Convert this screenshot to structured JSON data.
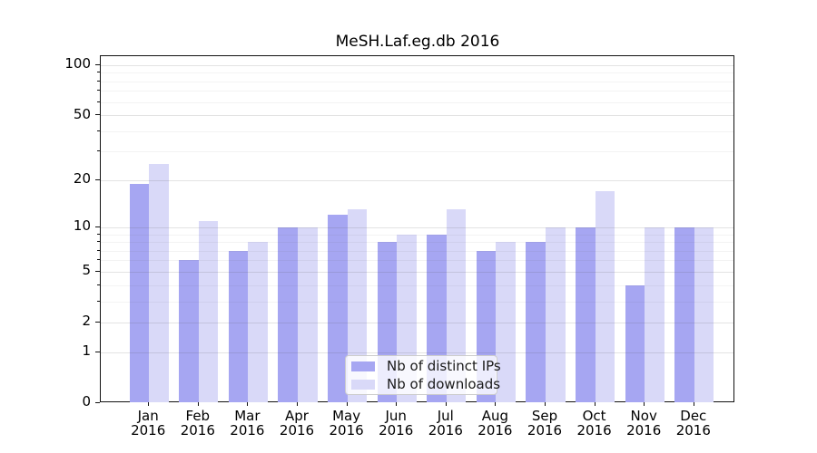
{
  "title": "MeSH.Laf.eg.db 2016",
  "colors": {
    "ips_bar": "#a6a6f2",
    "downloads_bar": "#d9d9f8",
    "axis": "#111111",
    "major_grid": "#d9d9d9",
    "minor_grid": "#eeeeee",
    "legend_border": "#cccccc"
  },
  "legend": {
    "items": [
      {
        "label": "Nb of distinct IPs",
        "color_key": "ips_bar"
      },
      {
        "label": "Nb of downloads",
        "color_key": "downloads_bar"
      }
    ]
  },
  "chart_data": {
    "type": "bar",
    "title": "MeSH.Laf.eg.db 2016",
    "year": "2016",
    "categories": [
      "Jan",
      "Feb",
      "Mar",
      "Apr",
      "May",
      "Jun",
      "Jul",
      "Aug",
      "Sep",
      "Oct",
      "Nov",
      "Dec"
    ],
    "series": [
      {
        "name": "Nb of distinct IPs",
        "values": [
          19,
          6,
          7,
          10,
          12,
          8,
          9,
          7,
          8,
          10,
          4,
          10
        ]
      },
      {
        "name": "Nb of downloads",
        "values": [
          25,
          11,
          8,
          10,
          13,
          9,
          13,
          8,
          10,
          17,
          10,
          10
        ]
      }
    ],
    "xlabel": "",
    "ylabel": "",
    "y_scale": "log10(1+v)",
    "ylim": [
      0,
      110
    ],
    "y_major_ticks": [
      0,
      1,
      2,
      5,
      10,
      20,
      50,
      100
    ],
    "y_minor_ticks": [
      3,
      4,
      6,
      7,
      8,
      9,
      30,
      40,
      60,
      70,
      80,
      90
    ],
    "grid": "on",
    "legend_position": "bottom-center-inside"
  }
}
